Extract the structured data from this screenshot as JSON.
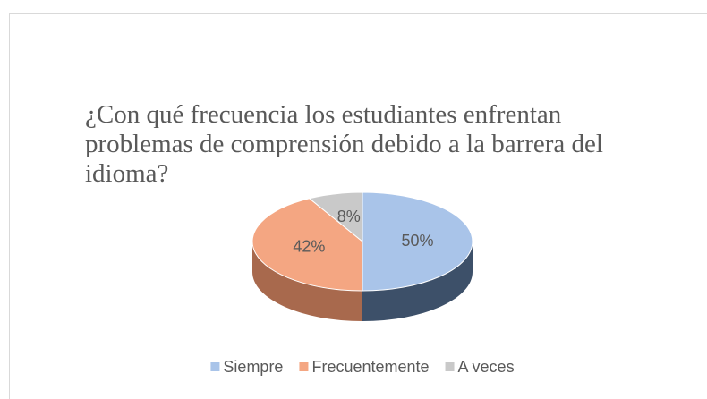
{
  "chart_data": {
    "type": "pie3d",
    "title": "¿Con qué frecuencia los estudiantes enfrentan problemas de comprensión debido a la barrera del idioma?",
    "categories": [
      "Siempre",
      "Frecuentemente",
      "A veces"
    ],
    "values": [
      50,
      42,
      8
    ],
    "value_labels": [
      "50%",
      "42%",
      "8%"
    ],
    "colors": [
      "#a9c4e9",
      "#f4a682",
      "#c9c9c9"
    ],
    "side_colors": [
      "#3d5069",
      "#a8694d",
      "#8a8a8a"
    ],
    "legend": "bottom"
  }
}
